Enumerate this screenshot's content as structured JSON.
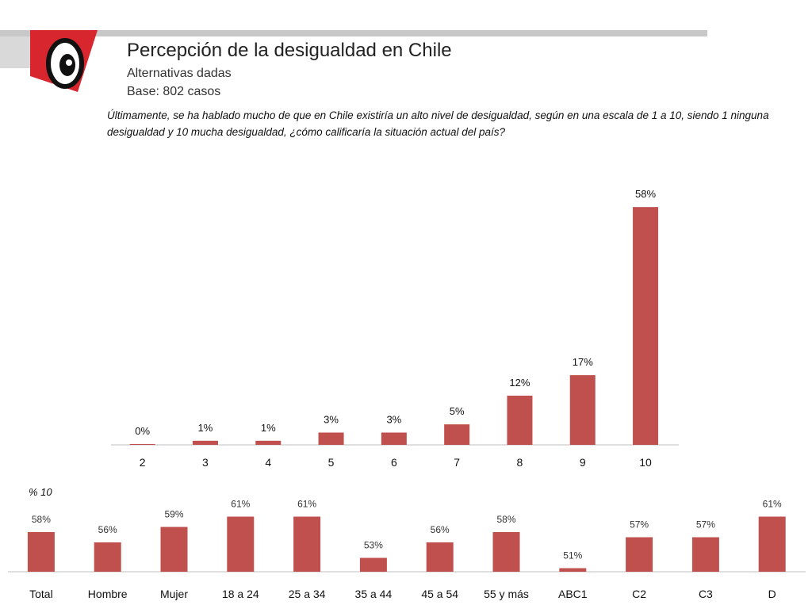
{
  "header": {
    "title": "Percepción de la desigualdad en Chile",
    "subtitle": "Alternativas dadas",
    "base": "Base: 802 casos",
    "question": "Últimamente, se ha hablado mucho de que en Chile existiría un alto nivel de desigualdad, según en una escala de 1 a 10, siendo 1 ninguna desigualdad y 10 mucha desigualdad, ¿cómo calificaría la situación actual del país?"
  },
  "colors": {
    "bar": "#c0504d",
    "band": "#c8c8c8",
    "logo_red": "#d7262e"
  },
  "segment_label": "% 10",
  "chart_data": [
    {
      "type": "bar",
      "title": "Percepción de la desigualdad en Chile",
      "categories": [
        "2",
        "3",
        "4",
        "5",
        "6",
        "7",
        "8",
        "9",
        "10"
      ],
      "values": [
        0,
        1,
        1,
        3,
        3,
        5,
        12,
        17,
        58
      ],
      "labels": [
        "0%",
        "1%",
        "1%",
        "3%",
        "3%",
        "5%",
        "12%",
        "17%",
        "58%"
      ],
      "ylim": [
        0,
        60
      ],
      "xlabel": "",
      "ylabel": ""
    },
    {
      "type": "bar",
      "title": "% 10",
      "categories": [
        "Total",
        "Hombre",
        "Mujer",
        "18 a 24",
        "25 a 34",
        "35 a 44",
        "45 a 54",
        "55 y más",
        "ABC1",
        "C2",
        "C3",
        "D"
      ],
      "values": [
        58,
        56,
        59,
        61,
        61,
        53,
        56,
        58,
        51,
        57,
        57,
        61
      ],
      "labels": [
        "58%",
        "56%",
        "59%",
        "61%",
        "61%",
        "53%",
        "56%",
        "58%",
        "51%",
        "57%",
        "57%",
        "61%"
      ],
      "xlabel": "",
      "ylabel": ""
    }
  ]
}
